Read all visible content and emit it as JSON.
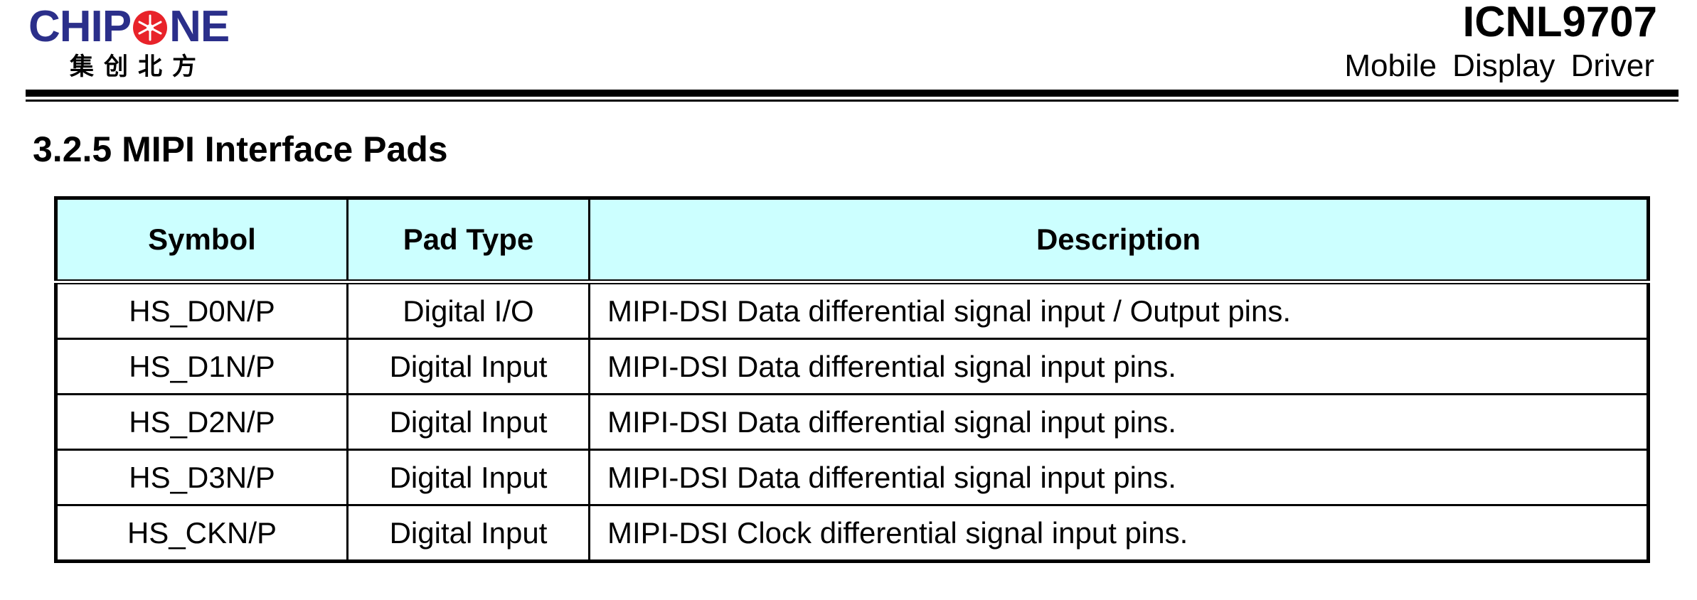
{
  "header": {
    "logo": {
      "word_left": "CHIP",
      "word_right": "NE",
      "chinese": "集创北方",
      "brand_color": "#2b2f8a",
      "accent_color": "#e8232a",
      "o_icon": "red-circle-with-star-icon"
    },
    "product": "ICNL9707",
    "subtitle": "Mobile Display Driver"
  },
  "section": {
    "title": "3.2.5 MIPI Interface Pads"
  },
  "table": {
    "header_bg": "#ccffff",
    "columns": [
      "Symbol",
      "Pad Type",
      "Description"
    ],
    "rows": [
      {
        "symbol": "HS_D0N/P",
        "type": "Digital I/O",
        "description": "MIPI-DSI Data differential signal input / Output pins."
      },
      {
        "symbol": "HS_D1N/P",
        "type": "Digital Input",
        "description": "MIPI-DSI Data differential signal input pins."
      },
      {
        "symbol": "HS_D2N/P",
        "type": "Digital Input",
        "description": "MIPI-DSI Data differential signal input pins."
      },
      {
        "symbol": "HS_D3N/P",
        "type": "Digital Input",
        "description": "MIPI-DSI Data differential signal input pins."
      },
      {
        "symbol": "HS_CKN/P",
        "type": "Digital Input",
        "description": "MIPI-DSI Clock differential signal input pins."
      }
    ]
  }
}
